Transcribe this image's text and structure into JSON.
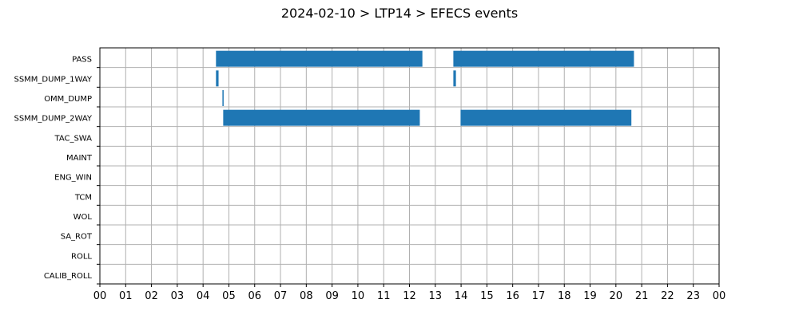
{
  "chart_data": {
    "type": "bar",
    "orientation": "horizontal",
    "title": "2024-02-10 > LTP14 > EFECS events",
    "xlabel": "",
    "ylabel": "",
    "xlim": [
      0,
      24
    ],
    "x_tick_labels": [
      "00",
      "01",
      "02",
      "03",
      "04",
      "05",
      "06",
      "07",
      "08",
      "09",
      "10",
      "11",
      "12",
      "13",
      "14",
      "15",
      "16",
      "17",
      "18",
      "19",
      "20",
      "21",
      "22",
      "23",
      "00"
    ],
    "categories": [
      "PASS",
      "SSMM_DUMP_1WAY",
      "OMM_DUMP",
      "SSMM_DUMP_2WAY",
      "TAC_SWA",
      "MAINT",
      "ENG_WIN",
      "TCM",
      "WOL",
      "SA_ROT",
      "ROLL",
      "CALIB_ROLL"
    ],
    "events": [
      {
        "category": "PASS",
        "start": 4.5,
        "end": 12.5
      },
      {
        "category": "PASS",
        "start": 13.7,
        "end": 20.7
      },
      {
        "category": "SSMM_DUMP_1WAY",
        "start": 4.5,
        "end": 4.6
      },
      {
        "category": "SSMM_DUMP_1WAY",
        "start": 13.7,
        "end": 13.8
      },
      {
        "category": "OMM_DUMP",
        "start": 4.75,
        "end": 4.78
      },
      {
        "category": "SSMM_DUMP_2WAY",
        "start": 4.78,
        "end": 12.4
      },
      {
        "category": "SSMM_DUMP_2WAY",
        "start": 13.98,
        "end": 20.6
      }
    ],
    "grid": true,
    "bar_color": "#1f77b4"
  }
}
